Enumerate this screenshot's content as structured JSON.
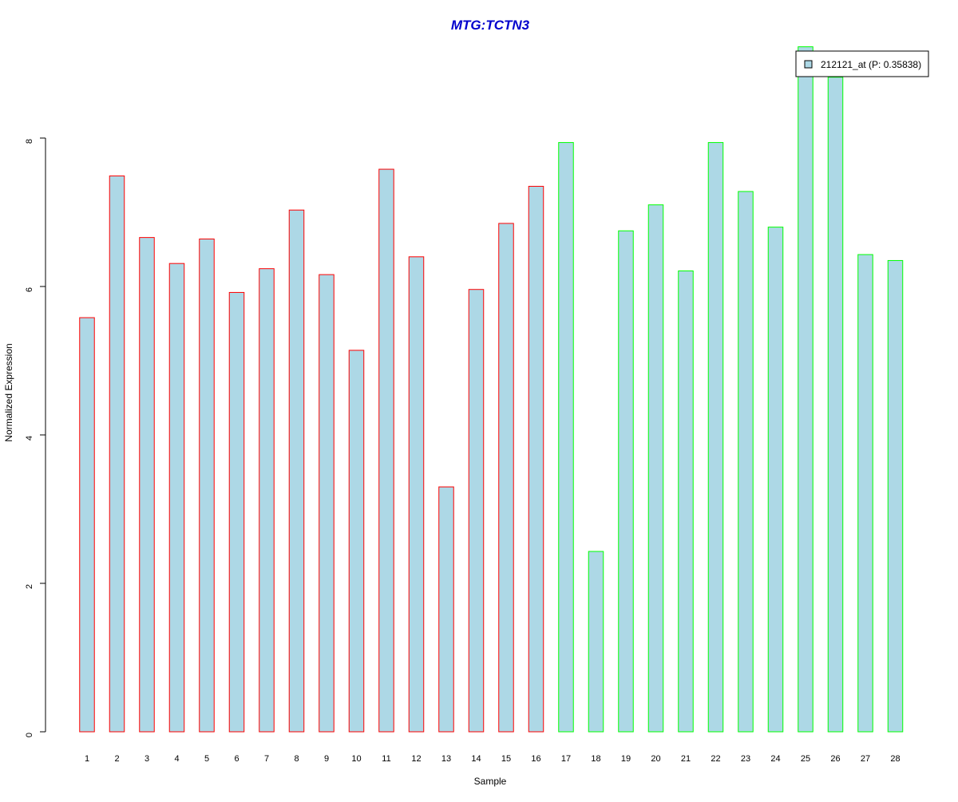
{
  "chart_data": {
    "type": "bar",
    "title": "MTG:TCTN3",
    "xlabel": "Sample",
    "ylabel": "Normalized Expression",
    "categories": [
      "1",
      "2",
      "3",
      "4",
      "5",
      "6",
      "7",
      "8",
      "9",
      "10",
      "11",
      "12",
      "13",
      "14",
      "15",
      "16",
      "17",
      "18",
      "19",
      "20",
      "21",
      "22",
      "23",
      "24",
      "25",
      "26",
      "27",
      "28"
    ],
    "series": [
      {
        "name": "212121_at (P: 0.35838)",
        "values": [
          5.58,
          7.49,
          6.66,
          6.31,
          6.64,
          5.92,
          6.24,
          7.03,
          6.16,
          5.14,
          7.58,
          6.4,
          3.3,
          5.96,
          6.85,
          7.35,
          7.94,
          2.43,
          6.75,
          7.1,
          6.21,
          7.94,
          7.28,
          6.8,
          9.23,
          8.82,
          6.43,
          6.35
        ]
      }
    ],
    "group_colors": [
      "#ff0000",
      "#ff0000",
      "#ff0000",
      "#ff0000",
      "#ff0000",
      "#ff0000",
      "#ff0000",
      "#ff0000",
      "#ff0000",
      "#ff0000",
      "#ff0000",
      "#ff0000",
      "#ff0000",
      "#ff0000",
      "#ff0000",
      "#ff0000",
      "#00ff00",
      "#00ff00",
      "#00ff00",
      "#00ff00",
      "#00ff00",
      "#00ff00",
      "#00ff00",
      "#00ff00",
      "#00ff00",
      "#00ff00",
      "#00ff00",
      "#00ff00"
    ],
    "fill_color": "#add8e6",
    "title_color": "#0000cd",
    "y_ticks": [
      0,
      2,
      4,
      6,
      8
    ],
    "ylim": [
      0,
      9.23
    ],
    "grid": false,
    "legend_position": "top-right"
  }
}
